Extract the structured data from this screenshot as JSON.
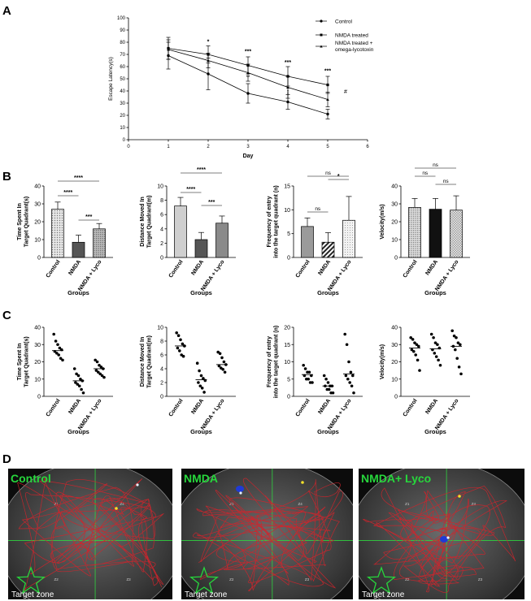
{
  "chart_data": [
    {
      "panel": "A",
      "type": "line",
      "xlabel": "Day",
      "ylabel": "Escape Latency(s)",
      "xlim": [
        0,
        6
      ],
      "ylim": [
        0,
        100
      ],
      "x": [
        1,
        2,
        3,
        4,
        5
      ],
      "series": [
        {
          "name": "Control",
          "values": [
            69,
            54,
            38,
            31,
            21
          ],
          "err": [
            11,
            13,
            8,
            6,
            4
          ]
        },
        {
          "name": "NMDA treated",
          "values": [
            75,
            70,
            61,
            52,
            45
          ],
          "err": [
            9,
            7,
            7,
            8,
            7
          ]
        },
        {
          "name": "NMDA treated + omega-lycotoxin",
          "values": [
            74,
            65,
            55,
            43,
            33
          ],
          "err": [
            8,
            6,
            7,
            9,
            6
          ]
        }
      ],
      "annotations": [
        "*",
        "***",
        "***",
        "***",
        "***",
        "**",
        "*",
        "*",
        "#"
      ]
    },
    {
      "panel": "B1",
      "type": "bar",
      "categories": [
        "Control",
        "NMDA",
        "NMDA + Lyco"
      ],
      "values": [
        27,
        8.5,
        16
      ],
      "err": [
        4,
        4,
        3
      ],
      "ylabel": "Time Spent In Target Quadrant(s)",
      "xlabel": "Groups",
      "ylim": [
        0,
        40
      ],
      "sig": [
        "****",
        "****",
        "***"
      ]
    },
    {
      "panel": "B2",
      "type": "bar",
      "categories": [
        "Control",
        "NMDA",
        "NMDA + Lyco"
      ],
      "values": [
        7.2,
        2.5,
        4.8
      ],
      "err": [
        1.2,
        1.0,
        1.0
      ],
      "ylabel": "Distance Moved In Target Quadrant(m)",
      "xlabel": "Groups",
      "ylim": [
        0,
        10
      ],
      "sig": [
        "****",
        "****",
        "***"
      ]
    },
    {
      "panel": "B3",
      "type": "bar",
      "categories": [
        "Control",
        "NMDA",
        "NMDA + Lyco"
      ],
      "values": [
        6.5,
        3.2,
        7.8
      ],
      "err": [
        1.8,
        2,
        5
      ],
      "ylabel": "Frequency of entry into the target quadrant (n)",
      "xlabel": "Groups",
      "ylim": [
        0,
        15
      ],
      "sig": [
        "ns",
        "ns",
        "*"
      ]
    },
    {
      "panel": "B4",
      "type": "bar",
      "categories": [
        "Control",
        "NMDA",
        "NMDA + Lyco"
      ],
      "values": [
        28,
        27,
        26.5
      ],
      "err": [
        5,
        6,
        8
      ],
      "ylabel": "Velocity(m/s)",
      "xlabel": "Groups",
      "ylim": [
        0,
        40
      ],
      "sig": [
        "ns",
        "ns",
        "ns"
      ]
    },
    {
      "panel": "C1",
      "type": "scatter",
      "categories": [
        "Control",
        "NMDA",
        "NMDA + Lyco"
      ],
      "points": [
        [
          36,
          32,
          30,
          28,
          27,
          26,
          25,
          24,
          22,
          21
        ],
        [
          16,
          13,
          12,
          10,
          9,
          8,
          7,
          6,
          4,
          2
        ],
        [
          21,
          20,
          18,
          17,
          16,
          15,
          14,
          13,
          12,
          11
        ]
      ],
      "means": [
        26.5,
        9,
        16
      ],
      "ylabel": "Time Spent In Target Quadrant(s)",
      "xlabel": "Groups",
      "ylim": [
        0,
        40
      ]
    },
    {
      "panel": "C2",
      "type": "scatter",
      "categories": [
        "Control",
        "NMDA",
        "NMDA + Lyco"
      ],
      "points": [
        [
          9.2,
          8.8,
          8.2,
          7.6,
          7.3,
          7.0,
          6.6,
          6.0,
          5.8
        ],
        [
          4.8,
          3.7,
          3.0,
          2.6,
          2.3,
          2.0,
          1.5,
          1.2,
          0.6
        ],
        [
          6.4,
          6.2,
          5.6,
          5.0,
          4.6,
          4.4,
          4.1,
          3.9,
          3.5
        ]
      ],
      "means": [
        7.3,
        2.4,
        4.6
      ],
      "ylabel": "Distance Moved In Target Quadrant(m)",
      "xlabel": "Groups",
      "ylim": [
        0,
        10
      ]
    },
    {
      "panel": "C3",
      "type": "scatter",
      "categories": [
        "Control",
        "NMDA",
        "NMDA + Lyco"
      ],
      "points": [
        [
          9,
          8,
          7,
          7,
          6,
          6,
          5,
          5,
          4,
          4
        ],
        [
          6,
          5,
          4,
          3,
          3,
          3,
          2,
          2,
          1,
          1
        ],
        [
          18,
          15,
          10,
          7,
          6,
          6,
          5,
          4,
          3,
          1
        ]
      ],
      "means": [
        6.3,
        3,
        6.5
      ],
      "ylabel": "Frequency of entry into the target quadrant (n)",
      "xlabel": "Groups",
      "ylim": [
        0,
        20
      ]
    },
    {
      "panel": "C4",
      "type": "scatter",
      "categories": [
        "Control",
        "NMDA",
        "NMDA + Lyco"
      ],
      "points": [
        [
          34,
          33,
          31,
          30,
          29,
          27,
          26,
          24,
          21,
          15
        ],
        [
          36,
          34,
          31,
          30,
          28,
          27,
          25,
          23,
          21,
          18
        ],
        [
          38,
          35,
          34,
          31,
          30,
          29,
          27,
          22,
          17,
          13
        ]
      ],
      "means": [
        28,
        27.5,
        29
      ],
      "ylabel": "Velocity(m/s)",
      "xlabel": "Groups",
      "ylim": [
        0,
        40
      ]
    }
  ],
  "panels": {
    "A": "A",
    "B": "B",
    "C": "C",
    "D": "D"
  },
  "legend": {
    "control": "Control",
    "nmda": "NMDA treated",
    "lyco_line1": "NMDA treated +",
    "lyco_line2": "omega-lycotoxin"
  },
  "tracks": [
    {
      "label": "Control",
      "zone": "Target zone"
    },
    {
      "label": "NMDA",
      "zone": "Target zone"
    },
    {
      "label": "NMDA+ Lyco",
      "zone": "Target zone"
    }
  ],
  "quadrants": [
    "Z1",
    "Z4",
    "Z2",
    "Z3"
  ],
  "colors": {
    "track_label": "#27d63c",
    "path": "#d0232b",
    "star": "#27d63c",
    "dot_yellow": "#f3e12a",
    "blob_blue": "#1f3ad6"
  }
}
